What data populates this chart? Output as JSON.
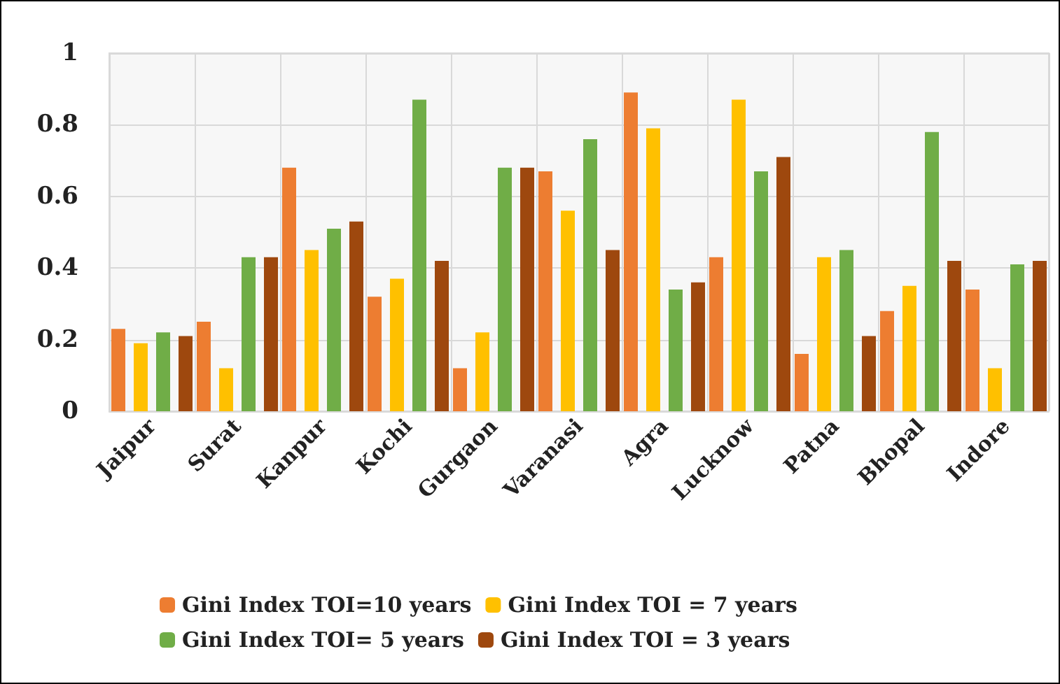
{
  "chart_data": {
    "type": "bar",
    "categories": [
      "Jaipur",
      "Surat",
      "Kanpur",
      "Kochi",
      "Gurgaon",
      "Varanasi",
      "Agra",
      "Lucknow",
      "Patna",
      "Bhopal",
      "Indore"
    ],
    "series": [
      {
        "name": "Gini Index TOI=10 years",
        "color": "#ed7d31",
        "values": [
          0.23,
          0.25,
          0.68,
          0.32,
          0.12,
          0.67,
          0.89,
          0.43,
          0.16,
          0.28,
          0.34
        ]
      },
      {
        "name": "Gini Index TOI = 7 years",
        "color": "#ffc000",
        "values": [
          0.19,
          0.12,
          0.45,
          0.37,
          0.22,
          0.56,
          0.79,
          0.87,
          0.43,
          0.35,
          0.12
        ]
      },
      {
        "name": "Gini Index TOI= 5 years",
        "color": "#70ad47",
        "values": [
          0.22,
          0.43,
          0.51,
          0.87,
          0.68,
          0.76,
          0.34,
          0.67,
          0.45,
          0.78,
          0.41
        ]
      },
      {
        "name": "Gini Index TOI = 3 years",
        "color": "#9e480e",
        "values": [
          0.21,
          0.43,
          0.53,
          0.42,
          0.68,
          0.45,
          0.36,
          0.71,
          0.21,
          0.42,
          0.42
        ]
      }
    ],
    "ylim": [
      0,
      1
    ],
    "yticks": [
      0,
      0.2,
      0.4,
      0.6,
      0.8,
      1
    ],
    "grid": true,
    "legend": "bottom"
  }
}
